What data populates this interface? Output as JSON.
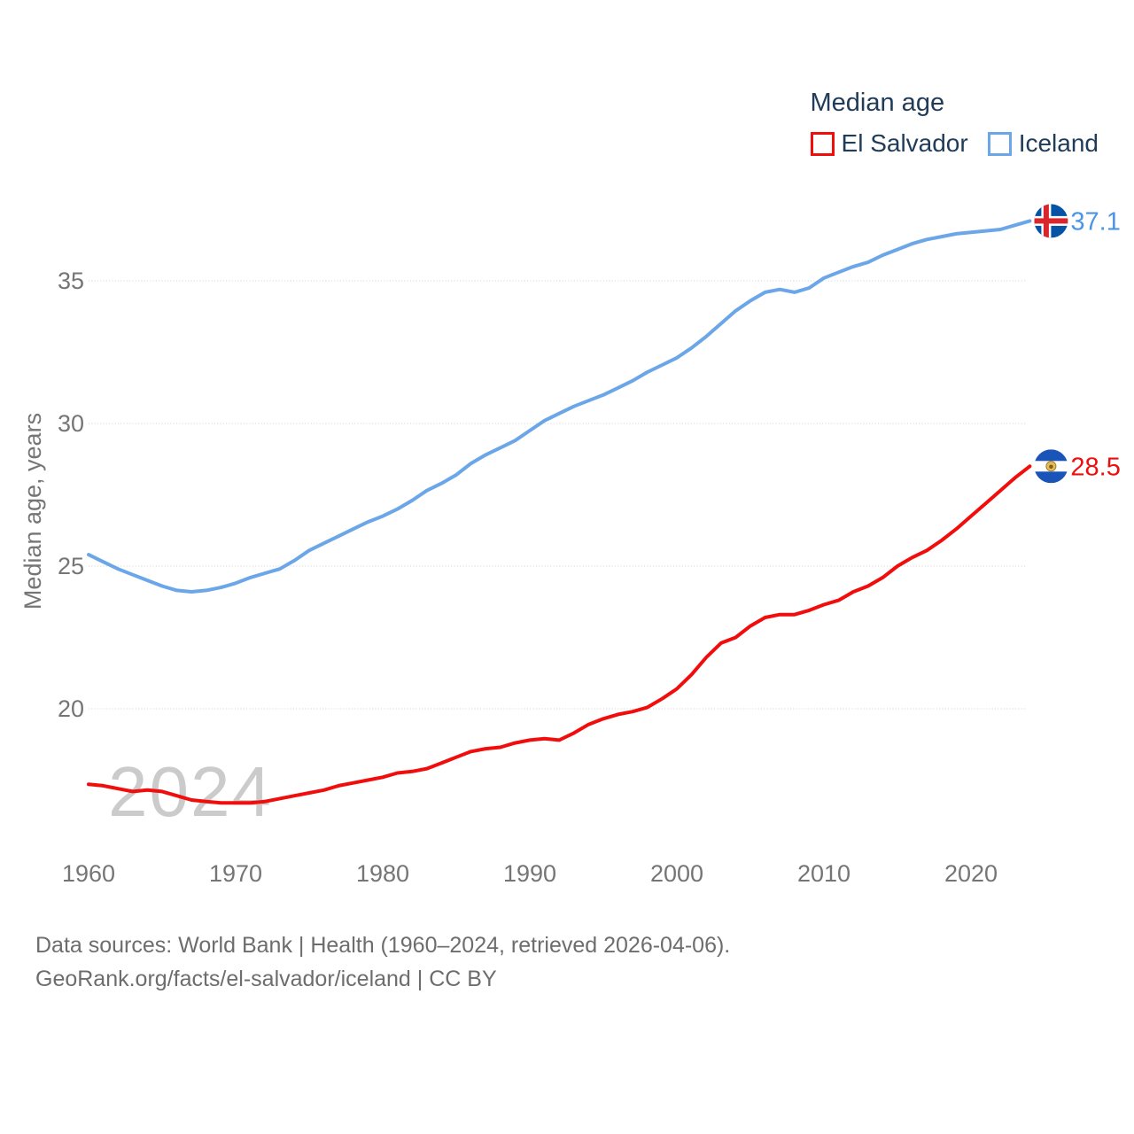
{
  "legend": {
    "title": "Median age",
    "series": [
      {
        "label": "El Salvador",
        "color": "#f20d0d"
      },
      {
        "label": "Iceland",
        "color": "#6ba6e8"
      }
    ]
  },
  "watermark": "2024",
  "footer": {
    "line1": "Data sources: World Bank | Health (1960–2024, retrieved 2026-04-06).",
    "line2": "GeoRank.org/facts/el-salvador/iceland | CC BY"
  },
  "chart_data": {
    "type": "line",
    "title": "Median age",
    "xlabel": "",
    "ylabel": "Median age, years",
    "x_range": [
      1960,
      2024
    ],
    "xticks": [
      1960,
      1970,
      1980,
      1990,
      2000,
      2010,
      2020
    ],
    "yticks": [
      20,
      25,
      30,
      35
    ],
    "ylim": [
      16,
      38.5
    ],
    "grid": true,
    "legend_position": "top-right",
    "series": [
      {
        "name": "Iceland",
        "color": "#6ba6e8",
        "label_color": "#4b95e6",
        "flag": "iceland",
        "end_label": "37.1",
        "values": [
          25.4,
          25.15,
          24.9,
          24.7,
          24.5,
          24.3,
          24.15,
          24.1,
          24.15,
          24.25,
          24.4,
          24.6,
          24.75,
          24.9,
          25.2,
          25.55,
          25.8,
          26.05,
          26.3,
          26.55,
          26.75,
          27.0,
          27.3,
          27.65,
          27.9,
          28.2,
          28.6,
          28.9,
          29.15,
          29.4,
          29.75,
          30.1,
          30.35,
          30.6,
          30.8,
          31.0,
          31.25,
          31.5,
          31.8,
          32.05,
          32.3,
          32.65,
          33.05,
          33.5,
          33.95,
          34.3,
          34.6,
          34.7,
          34.6,
          34.75,
          35.1,
          35.3,
          35.5,
          35.65,
          35.9,
          36.1,
          36.3,
          36.45,
          36.55,
          36.65,
          36.7,
          36.75,
          36.8,
          36.95,
          37.1
        ]
      },
      {
        "name": "El Salvador",
        "color": "#f20d0d",
        "label_color": "#f20d0d",
        "flag": "el-salvador",
        "end_label": "28.5",
        "values": [
          17.35,
          17.3,
          17.2,
          17.1,
          17.15,
          17.1,
          16.95,
          16.8,
          16.75,
          16.7,
          16.7,
          16.7,
          16.75,
          16.85,
          16.95,
          17.05,
          17.15,
          17.3,
          17.4,
          17.5,
          17.6,
          17.75,
          17.8,
          17.9,
          18.1,
          18.3,
          18.5,
          18.6,
          18.65,
          18.8,
          18.9,
          18.95,
          18.9,
          19.15,
          19.45,
          19.65,
          19.8,
          19.9,
          20.05,
          20.35,
          20.7,
          21.2,
          21.8,
          22.3,
          22.5,
          22.9,
          23.2,
          23.3,
          23.3,
          23.45,
          23.65,
          23.8,
          24.1,
          24.3,
          24.6,
          25.0,
          25.3,
          25.55,
          25.9,
          26.3,
          26.75,
          27.2,
          27.65,
          28.1,
          28.5
        ]
      }
    ],
    "years": [
      1960,
      1961,
      1962,
      1963,
      1964,
      1965,
      1966,
      1967,
      1968,
      1969,
      1970,
      1971,
      1972,
      1973,
      1974,
      1975,
      1976,
      1977,
      1978,
      1979,
      1980,
      1981,
      1982,
      1983,
      1984,
      1985,
      1986,
      1987,
      1988,
      1989,
      1990,
      1991,
      1992,
      1993,
      1994,
      1995,
      1996,
      1997,
      1998,
      1999,
      2000,
      2001,
      2002,
      2003,
      2004,
      2005,
      2006,
      2007,
      2008,
      2009,
      2010,
      2011,
      2012,
      2013,
      2014,
      2015,
      2016,
      2017,
      2018,
      2019,
      2020,
      2021,
      2022,
      2023,
      2024
    ]
  }
}
